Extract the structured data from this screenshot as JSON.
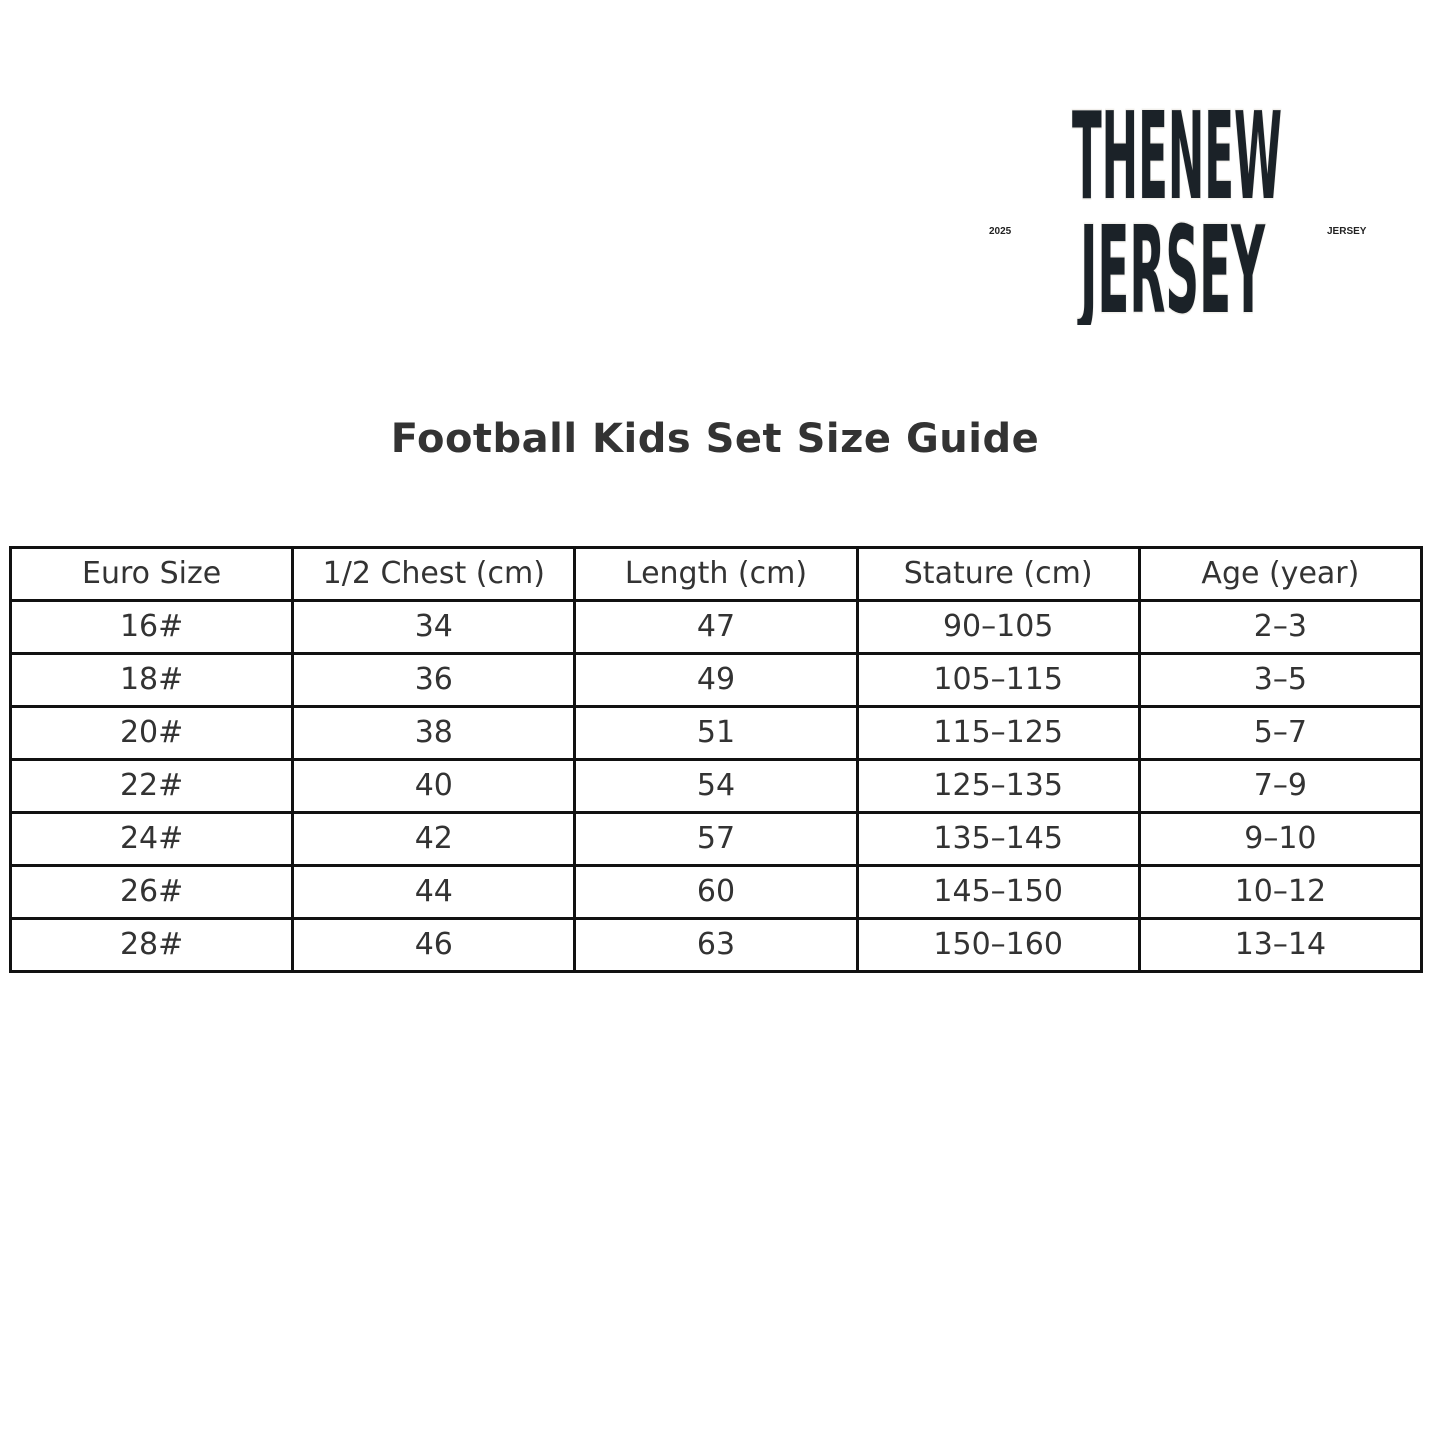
{
  "logo": {
    "line1": "THENEW",
    "line2": "JERSEY",
    "left_text": "2025",
    "right_text": "JERSEY",
    "color": "#1b2228"
  },
  "title": "Football Kids Set Size Guide",
  "table": {
    "headers": [
      "Euro Size",
      "1/2 Chest (cm)",
      "Length (cm)",
      "Stature (cm)",
      "Age (year)"
    ],
    "rows": [
      [
        "16#",
        "34",
        "47",
        "90–105",
        "2–3"
      ],
      [
        "18#",
        "36",
        "49",
        "105–115",
        "3–5"
      ],
      [
        "20#",
        "38",
        "51",
        "115–125",
        "5–7"
      ],
      [
        "22#",
        "40",
        "54",
        "125–135",
        "7–9"
      ],
      [
        "24#",
        "42",
        "57",
        "135–145",
        "9–10"
      ],
      [
        "26#",
        "44",
        "60",
        "145–150",
        "10–12"
      ],
      [
        "28#",
        "46",
        "63",
        "150–160",
        "13–14"
      ]
    ]
  }
}
